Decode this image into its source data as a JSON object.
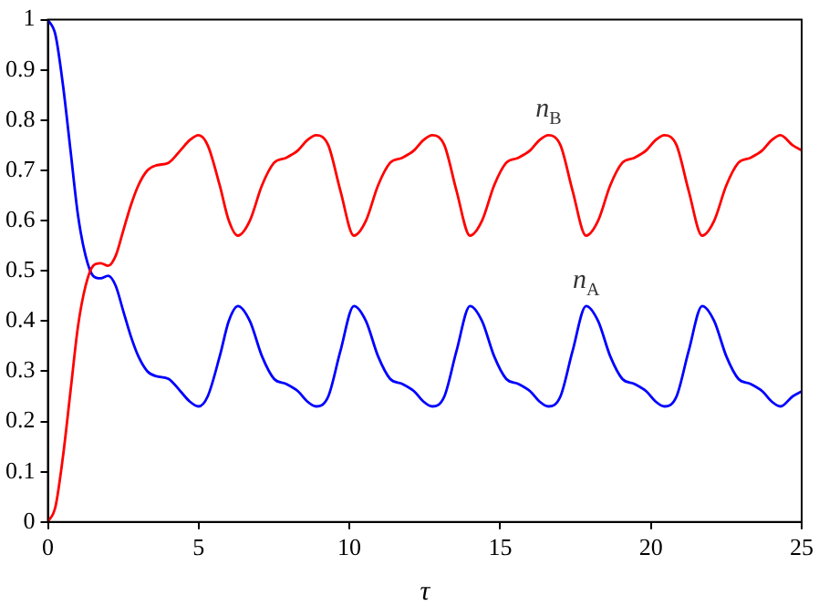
{
  "chart_data": {
    "type": "line",
    "xlabel": "τ",
    "xlim": [
      0,
      25
    ],
    "xticks": [
      0,
      5,
      10,
      15,
      20,
      25
    ],
    "ylim": [
      0,
      1
    ],
    "yticks": [
      0,
      0.1,
      0.2,
      0.3,
      0.4,
      0.5,
      0.6,
      0.7,
      0.8,
      0.9,
      1
    ],
    "grid": false,
    "legend": false,
    "marker": "none",
    "line_style": "solid",
    "x": [
      0,
      0.25,
      0.5,
      0.75,
      1.0,
      1.25,
      1.5,
      1.75,
      2.0,
      2.25,
      2.5,
      2.75,
      3.0,
      3.3,
      3.6,
      4.0,
      4.4,
      4.7,
      5.0,
      5.3,
      5.7,
      6.0,
      6.3,
      6.7,
      7.1,
      7.5,
      7.9,
      8.3,
      8.6,
      8.9,
      9.3,
      9.7,
      10.15,
      10.55,
      10.95,
      11.35,
      11.75,
      12.15,
      12.45,
      12.75,
      13.15,
      13.55,
      14.0,
      14.4,
      14.8,
      15.2,
      15.6,
      16.0,
      16.3,
      16.6,
      17.0,
      17.4,
      17.85,
      18.25,
      18.65,
      19.05,
      19.45,
      19.85,
      20.15,
      20.45,
      20.85,
      21.25,
      21.7,
      22.1,
      22.5,
      22.9,
      23.3,
      23.7,
      24.0,
      24.3,
      24.7,
      25
    ],
    "series": [
      {
        "name": "n$_{B}$",
        "color": "#ff0000",
        "values": [
          0,
          0.03,
          0.13,
          0.26,
          0.39,
          0.47,
          0.51,
          0.515,
          0.51,
          0.53,
          0.58,
          0.63,
          0.67,
          0.7,
          0.71,
          0.715,
          0.74,
          0.76,
          0.77,
          0.75,
          0.67,
          0.6,
          0.57,
          0.6,
          0.67,
          0.715,
          0.725,
          0.74,
          0.76,
          0.77,
          0.75,
          0.66,
          0.57,
          0.6,
          0.67,
          0.715,
          0.725,
          0.74,
          0.76,
          0.77,
          0.75,
          0.66,
          0.57,
          0.6,
          0.67,
          0.715,
          0.725,
          0.74,
          0.76,
          0.77,
          0.75,
          0.66,
          0.57,
          0.6,
          0.67,
          0.715,
          0.725,
          0.74,
          0.76,
          0.77,
          0.75,
          0.66,
          0.57,
          0.6,
          0.67,
          0.715,
          0.725,
          0.74,
          0.76,
          0.77,
          0.75,
          0.74
        ]
      },
      {
        "name": "n$_{A}$",
        "color": "#0000ff",
        "values": [
          1,
          0.97,
          0.87,
          0.74,
          0.61,
          0.53,
          0.49,
          0.485,
          0.49,
          0.47,
          0.42,
          0.37,
          0.33,
          0.3,
          0.29,
          0.285,
          0.26,
          0.24,
          0.23,
          0.25,
          0.33,
          0.4,
          0.43,
          0.4,
          0.33,
          0.285,
          0.275,
          0.26,
          0.24,
          0.23,
          0.25,
          0.34,
          0.43,
          0.4,
          0.33,
          0.285,
          0.275,
          0.26,
          0.24,
          0.23,
          0.25,
          0.34,
          0.43,
          0.4,
          0.33,
          0.285,
          0.275,
          0.26,
          0.24,
          0.23,
          0.25,
          0.34,
          0.43,
          0.4,
          0.33,
          0.285,
          0.275,
          0.26,
          0.24,
          0.23,
          0.25,
          0.34,
          0.43,
          0.4,
          0.33,
          0.285,
          0.275,
          0.26,
          0.24,
          0.23,
          0.25,
          0.26
        ]
      }
    ]
  }
}
